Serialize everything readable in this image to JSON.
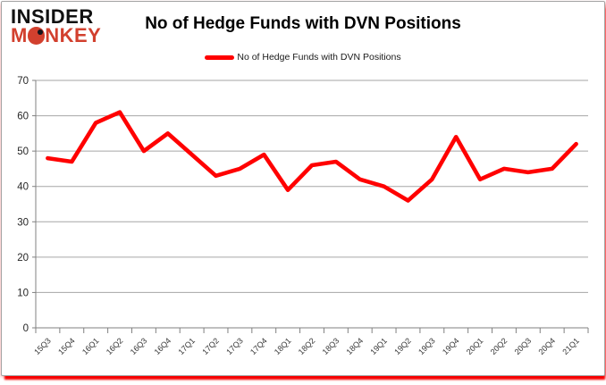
{
  "logo": {
    "line1": "INSIDER",
    "line2": "MONKEY",
    "accent_color": "#d2402e"
  },
  "header": {
    "title": "No of Hedge Funds with DVN Positions"
  },
  "legend": {
    "label": "No of Hedge Funds with DVN Positions",
    "line_color": "#ff0000"
  },
  "colors": {
    "series_red": "#ff0000",
    "logo_red": "#d2402e",
    "shadow_red": "#f70000",
    "border_gray": "#a3a3a3",
    "gridline_gray": "#a6a6a6",
    "axis_gray": "#808080",
    "tick_label": "#333333"
  },
  "chart_data": {
    "type": "line",
    "title": "No of Hedge Funds with DVN Positions",
    "categories": [
      "15Q3",
      "15Q4",
      "16Q1",
      "16Q2",
      "16Q3",
      "16Q4",
      "17Q1",
      "17Q2",
      "17Q3",
      "17Q4",
      "18Q1",
      "18Q2",
      "18Q3",
      "18Q4",
      "19Q1",
      "19Q2",
      "19Q3",
      "19Q4",
      "20Q1",
      "20Q2",
      "20Q3",
      "20Q4",
      "21Q1"
    ],
    "series": [
      {
        "name": "No of Hedge Funds with DVN Positions",
        "color": "#ff0000",
        "values": [
          48,
          47,
          58,
          61,
          50,
          55,
          49,
          43,
          45,
          49,
          39,
          46,
          47,
          42,
          40,
          36,
          42,
          54,
          42,
          45,
          44,
          45,
          52
        ]
      }
    ],
    "xlabel": "",
    "ylabel": "",
    "ylim": [
      0,
      70
    ],
    "yticks": [
      0,
      10,
      20,
      30,
      40,
      50,
      60,
      70
    ],
    "grid": true,
    "legend_position": "top-center"
  }
}
